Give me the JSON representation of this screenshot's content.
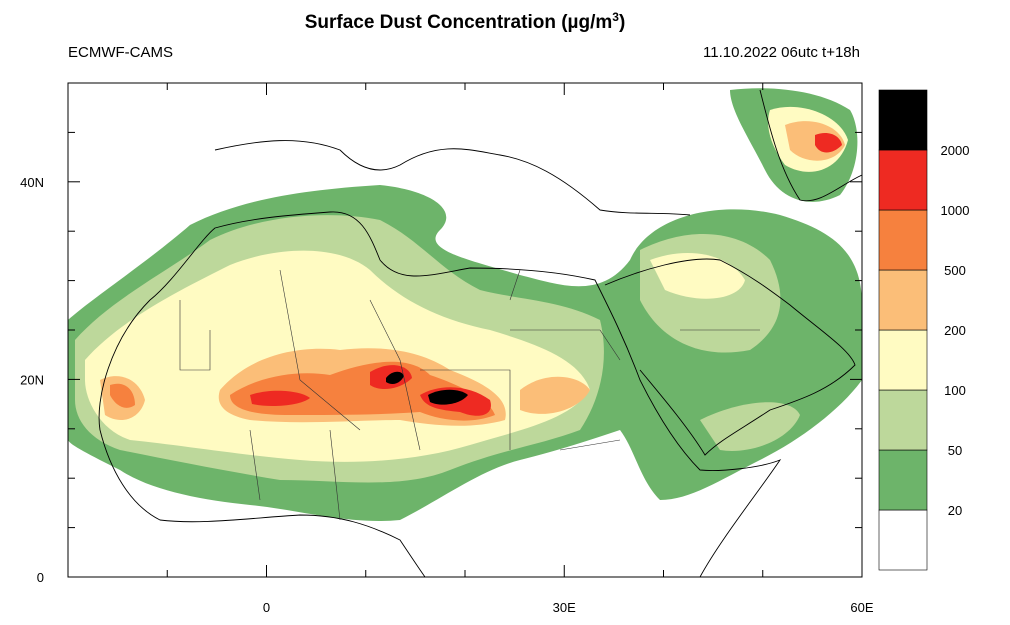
{
  "header": {
    "title": "Surface Dust Concentration (µg/m",
    "title_superscript": "3",
    "title_end": ")",
    "source": "ECMWF-CAMS",
    "valid_time": "11.10.2022 06utc t+18h"
  },
  "map": {
    "lon_extent": [
      -20,
      60
    ],
    "lat_extent": [
      0,
      50
    ],
    "lon_ticks": [
      {
        "value": 0,
        "label": "0"
      },
      {
        "value": 30,
        "label": "30E"
      },
      {
        "value": 60,
        "label": "60E"
      }
    ],
    "lat_ticks": [
      {
        "value": 0,
        "label": "0"
      },
      {
        "value": 20,
        "label": "20N"
      },
      {
        "value": 40,
        "label": "40N"
      }
    ],
    "lon_minor_ticks": [
      -10,
      10,
      20,
      40,
      50
    ],
    "lat_minor_ticks": [
      5,
      10,
      15,
      25,
      30,
      35,
      45
    ]
  },
  "colorbar": {
    "levels": [
      20,
      50,
      100,
      200,
      500,
      1000,
      2000
    ],
    "colors": [
      "#ffffff",
      "#6db46a",
      "#bdd89b",
      "#fffbc2",
      "#fbbe78",
      "#f6813e",
      "#ee2a22",
      "#000000"
    ]
  }
}
